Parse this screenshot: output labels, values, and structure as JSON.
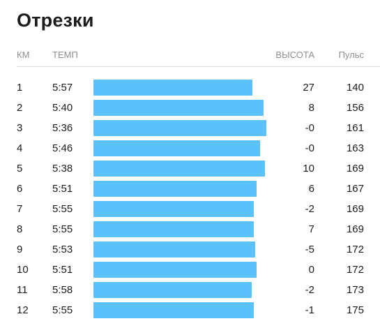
{
  "title": "Отрезки",
  "headers": {
    "km": "КМ",
    "pace": "ТЕМП",
    "elevation": "ВЫСОТА",
    "pulse": "Пульс"
  },
  "bar_color": "#5ac1fb",
  "splits": [
    {
      "km": "1",
      "pace": "5:57",
      "pace_seconds": 357,
      "elevation": "27",
      "pulse": "140"
    },
    {
      "km": "2",
      "pace": "5:40",
      "pace_seconds": 340,
      "elevation": "8",
      "pulse": "156"
    },
    {
      "km": "3",
      "pace": "5:36",
      "pace_seconds": 336,
      "elevation": "-0",
      "pulse": "161"
    },
    {
      "km": "4",
      "pace": "5:46",
      "pace_seconds": 346,
      "elevation": "-0",
      "pulse": "163"
    },
    {
      "km": "5",
      "pace": "5:38",
      "pace_seconds": 338,
      "elevation": "10",
      "pulse": "169"
    },
    {
      "km": "6",
      "pace": "5:51",
      "pace_seconds": 351,
      "elevation": "6",
      "pulse": "167"
    },
    {
      "km": "7",
      "pace": "5:55",
      "pace_seconds": 355,
      "elevation": "-2",
      "pulse": "169"
    },
    {
      "km": "8",
      "pace": "5:55",
      "pace_seconds": 355,
      "elevation": "7",
      "pulse": "169"
    },
    {
      "km": "9",
      "pace": "5:53",
      "pace_seconds": 353,
      "elevation": "-5",
      "pulse": "172"
    },
    {
      "km": "10",
      "pace": "5:51",
      "pace_seconds": 351,
      "elevation": "0",
      "pulse": "172"
    },
    {
      "km": "11",
      "pace": "5:58",
      "pace_seconds": 358,
      "elevation": "-2",
      "pulse": "173"
    },
    {
      "km": "12",
      "pace": "5:55",
      "pace_seconds": 355,
      "elevation": "-1",
      "pulse": "175"
    }
  ]
}
